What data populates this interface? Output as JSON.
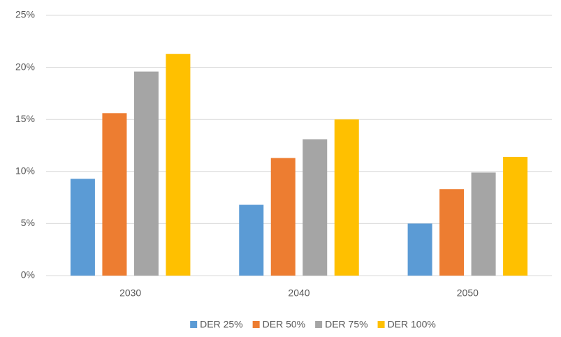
{
  "chart_data": {
    "type": "bar",
    "categories": [
      "2030",
      "2040",
      "2050"
    ],
    "series": [
      {
        "name": "DER 25%",
        "color": "#5b9bd5",
        "values": [
          9.3,
          6.8,
          5.0
        ]
      },
      {
        "name": "DER 50%",
        "color": "#ed7d31",
        "values": [
          15.6,
          11.3,
          8.3
        ]
      },
      {
        "name": "DER 75%",
        "color": "#a5a5a5",
        "values": [
          19.6,
          13.1,
          9.9
        ]
      },
      {
        "name": "DER 100%",
        "color": "#ffc000",
        "values": [
          21.3,
          15.0,
          11.4
        ]
      }
    ],
    "ylim": [
      0,
      25
    ],
    "yticks": [
      {
        "value": 0,
        "label": "0%"
      },
      {
        "value": 5,
        "label": "5%"
      },
      {
        "value": 10,
        "label": "10%"
      },
      {
        "value": 15,
        "label": "15%"
      },
      {
        "value": 20,
        "label": "20%"
      },
      {
        "value": 25,
        "label": "25%"
      }
    ],
    "grid": true,
    "legend": "bottom"
  }
}
